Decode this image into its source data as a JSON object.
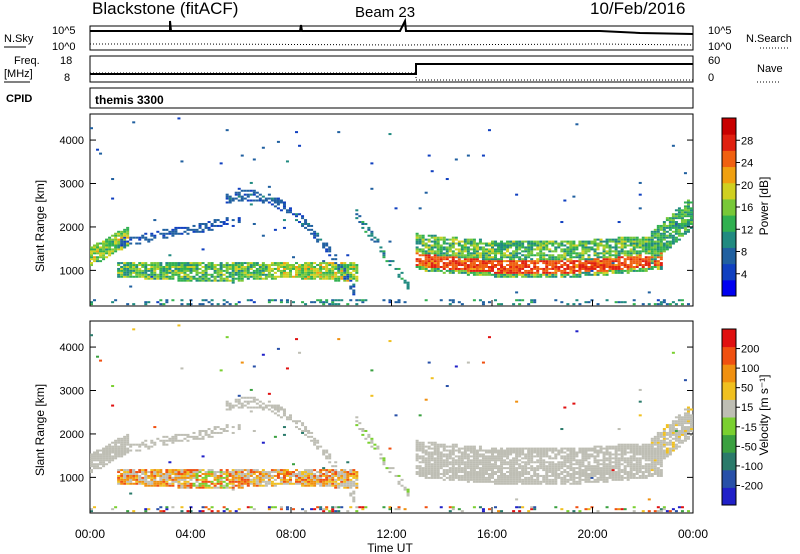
{
  "header": {
    "station": "Blackstone (fitACF)",
    "beam": "Beam 23",
    "date": "10/Feb/2016"
  },
  "top_panels": {
    "nsky_label": "N.Sky",
    "nsearch_label": "N.Search",
    "noise_ticks": [
      "10^5",
      "10^0"
    ],
    "freq_label_1": "Freq.",
    "freq_label_2": "[MHz]",
    "freq_ticks": [
      "18",
      "8"
    ],
    "nave_label": "Nave",
    "nave_ticks": [
      "60",
      "0"
    ],
    "cpid_label": "CPID",
    "cpid_value": "themis 3300"
  },
  "colors": {
    "ground": "#bebeb4"
  },
  "chart_data": [
    {
      "type": "heatmap",
      "panel": "power",
      "ylabel": "Slant Range [km]",
      "yticks": [
        1000,
        2000,
        3000,
        4000
      ],
      "ylim": [
        180,
        4600
      ],
      "xlim": [
        0,
        24
      ],
      "colorbar": {
        "label": "Power [dB]",
        "ticks": [
          4,
          8,
          12,
          16,
          20,
          24,
          28
        ],
        "colors": [
          "#0000f0",
          "#1040c0",
          "#2060a0",
          "#208a80",
          "#30b050",
          "#78c838",
          "#d0d020",
          "#f0a010",
          "#f06010",
          "#e02010",
          "#c80000"
        ]
      },
      "bands": [
        {
          "t0": 0.0,
          "t1": 10.5,
          "r0": 780,
          "r1": 1150,
          "level": 10,
          "desc": "main near-range"
        },
        {
          "t0": 0.2,
          "t1": 1.5,
          "r0": 1200,
          "r1": 1750,
          "level": 12
        },
        {
          "t0": 1.2,
          "t1": 6.0,
          "r0": 1750,
          "r1": 2300,
          "level": 3
        },
        {
          "t0": 5.5,
          "t1": 10.5,
          "r0": 1300,
          "r1": 3000,
          "level": 4
        },
        {
          "t0": 13.0,
          "t1": 22.5,
          "r0": 1000,
          "r1": 1800,
          "level": 22
        },
        {
          "t0": 22.5,
          "t1": 24.0,
          "r0": 1600,
          "r1": 2600,
          "level": 10
        }
      ]
    },
    {
      "type": "heatmap",
      "panel": "velocity",
      "xlabel": "Time UT",
      "xticks": [
        "00:00",
        "04:00",
        "08:00",
        "12:00",
        "16:00",
        "20:00",
        "00:00"
      ],
      "ylabel": "Slant Range [km]",
      "yticks": [
        1000,
        2000,
        3000,
        4000
      ],
      "ylim": [
        180,
        4600
      ],
      "xlim": [
        0,
        24
      ],
      "colorbar": {
        "label": "Velocity [m s⁻¹]",
        "ticks": [
          200,
          100,
          50,
          15,
          -15,
          -50,
          -100,
          -200
        ],
        "colors": [
          "#2020c8",
          "#2850a8",
          "#2a7a6a",
          "#3aa040",
          "#7ad030",
          "#bebeb4",
          "#f0c020",
          "#f09010",
          "#f05010",
          "#e01010"
        ]
      }
    }
  ]
}
